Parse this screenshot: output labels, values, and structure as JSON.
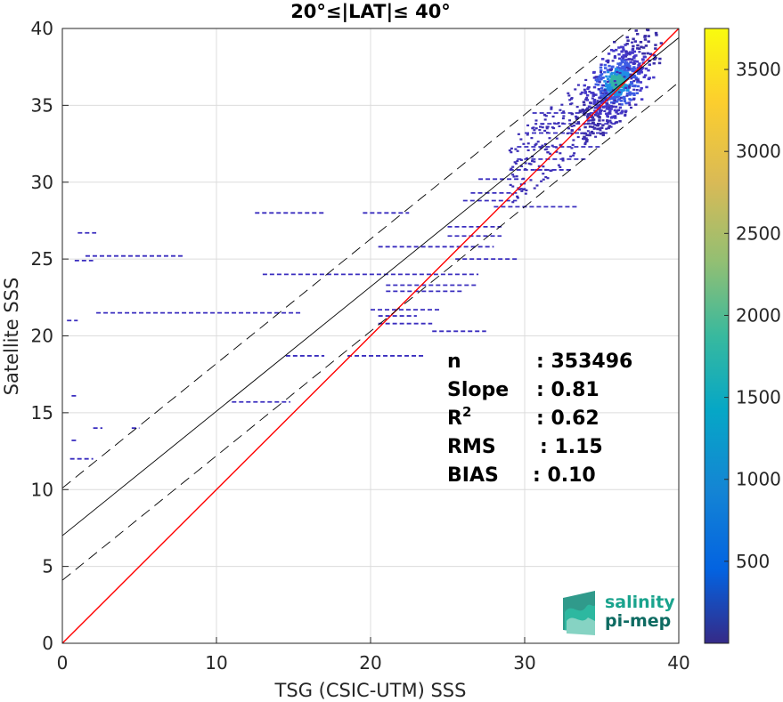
{
  "chart_data": {
    "type": "heatmap",
    "title": "20°≤|LAT|≤ 40°",
    "xlabel": "TSG (CSIC-UTM) SSS",
    "ylabel": "Satellite SSS",
    "xlim": [
      0,
      40
    ],
    "ylim": [
      0,
      40
    ],
    "xticks": [
      "0",
      "10",
      "20",
      "30",
      "40"
    ],
    "yticks": [
      "0",
      "5",
      "10",
      "15",
      "20",
      "25",
      "30",
      "35",
      "40"
    ],
    "grid": true,
    "colorbar": {
      "colormap": "parula",
      "range": [
        0,
        3750
      ],
      "ticks": [
        "500",
        "1000",
        "1500",
        "2000",
        "2500",
        "3000",
        "3500"
      ]
    },
    "lines": [
      {
        "role": "identity",
        "color": "#ff0000",
        "intercept": 0,
        "slope": 1
      },
      {
        "role": "fit",
        "color": "#000000",
        "intercept": 7.0,
        "slope": 0.81
      },
      {
        "role": "fit-upper",
        "color": "#000000",
        "style": "dashed",
        "intercept": 10.1,
        "slope": 0.81
      },
      {
        "role": "fit-lower",
        "color": "#000000",
        "style": "dashed",
        "intercept": 4.1,
        "slope": 0.81
      }
    ],
    "density_cluster": {
      "center": [
        36.0,
        36.5
      ],
      "peak": 3700
    },
    "density_segments": [
      {
        "x0": 1.0,
        "x1": 2.2,
        "y": 26.7
      },
      {
        "x0": 0.8,
        "x1": 2.0,
        "y": 24.9
      },
      {
        "x0": 1.5,
        "x1": 7.8,
        "y": 25.2
      },
      {
        "x0": 2.2,
        "x1": 15.5,
        "y": 21.5
      },
      {
        "x0": 0.3,
        "x1": 1.0,
        "y": 21.0
      },
      {
        "x0": 0.5,
        "x1": 2.0,
        "y": 12.0
      },
      {
        "x0": 0.6,
        "x1": 1.0,
        "y": 13.2
      },
      {
        "x0": 12.5,
        "x1": 17.0,
        "y": 28.0
      },
      {
        "x0": 19.5,
        "x1": 22.5,
        "y": 28.0
      },
      {
        "x0": 13.0,
        "x1": 27.0,
        "y": 24.0
      },
      {
        "x0": 11.0,
        "x1": 14.8,
        "y": 15.7
      },
      {
        "x0": 14.5,
        "x1": 17.0,
        "y": 18.7
      },
      {
        "x0": 18.5,
        "x1": 23.5,
        "y": 18.7
      },
      {
        "x0": 20.0,
        "x1": 24.5,
        "y": 21.7
      },
      {
        "x0": 20.5,
        "x1": 23.0,
        "y": 21.3
      },
      {
        "x0": 20.5,
        "x1": 24.0,
        "y": 20.8
      },
      {
        "x0": 24.0,
        "x1": 27.5,
        "y": 20.3
      },
      {
        "x0": 20.5,
        "x1": 28.0,
        "y": 25.8
      },
      {
        "x0": 25.5,
        "x1": 29.5,
        "y": 25.0
      },
      {
        "x0": 25.0,
        "x1": 28.5,
        "y": 26.5
      },
      {
        "x0": 25.0,
        "x1": 28.5,
        "y": 27.1
      },
      {
        "x0": 26.0,
        "x1": 29.5,
        "y": 28.8
      },
      {
        "x0": 26.5,
        "x1": 29.5,
        "y": 29.3
      },
      {
        "x0": 27.0,
        "x1": 30.0,
        "y": 30.2
      },
      {
        "x0": 21.0,
        "x1": 26.0,
        "y": 22.9
      },
      {
        "x0": 21.0,
        "x1": 27.0,
        "y": 23.3
      },
      {
        "x0": 28.0,
        "x1": 33.5,
        "y": 28.4
      },
      {
        "x0": 29.5,
        "x1": 34.0,
        "y": 31.5
      },
      {
        "x0": 29.5,
        "x1": 35.0,
        "y": 32.3
      },
      {
        "x0": 30.0,
        "x1": 35.5,
        "y": 33.2
      },
      {
        "x0": 31.0,
        "x1": 36.0,
        "y": 33.8
      },
      {
        "x0": 29.0,
        "x1": 33.0,
        "y": 30.8
      },
      {
        "x0": 30.5,
        "x1": 34.5,
        "y": 34.5
      },
      {
        "x0": 0.6,
        "x1": 0.9,
        "y": 16.1
      },
      {
        "x0": 4.5,
        "x1": 5.0,
        "y": 14.0
      },
      {
        "x0": 2.0,
        "x1": 2.6,
        "y": 14.0
      }
    ],
    "stats": [
      {
        "label": "n",
        "value": ": 353496"
      },
      {
        "label": "Slope",
        "value": ": 0.81"
      },
      {
        "label": "R",
        "sup": "2",
        "value": ": 0.62"
      },
      {
        "label": "RMS",
        "value": ": 1.15"
      },
      {
        "label": "BIAS",
        "value": ": 0.10"
      }
    ],
    "logo": {
      "line1": "salinity",
      "line2": "pi-mep"
    }
  }
}
